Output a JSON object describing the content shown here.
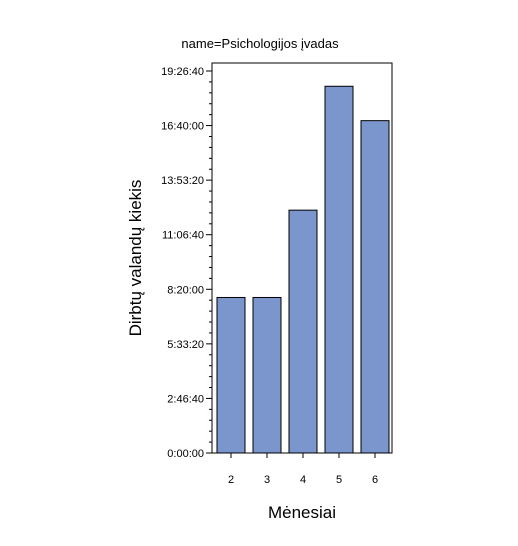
{
  "chart_data": {
    "type": "bar",
    "title": "name=Psichologijos įvadas",
    "xlabel": "Mėnesiai",
    "ylabel": "Dirbtų valandų kiekis",
    "categories": [
      "2",
      "3",
      "4",
      "5",
      "6"
    ],
    "values_seconds": [
      28500,
      28500,
      44500,
      67200,
      60900
    ],
    "values": [
      "7:55:00",
      "7:55:00",
      "12:21:40",
      "18:40:00",
      "16:55:00"
    ],
    "ylim_seconds": [
      0,
      72000
    ],
    "y_ticks": [
      {
        "value": 0,
        "label": "0:00:00"
      },
      {
        "value": 10000,
        "label": "2:46:40"
      },
      {
        "value": 20000,
        "label": "5:33:20"
      },
      {
        "value": 30000,
        "label": "8:20:00"
      },
      {
        "value": 40000,
        "label": "11:06:40"
      },
      {
        "value": 50000,
        "label": "13:53:20"
      },
      {
        "value": 60000,
        "label": "16:40:00"
      },
      {
        "value": 70000,
        "label": "19:26:40"
      }
    ],
    "bar_color": "#7b96cc",
    "bar_edge_color": "#000000",
    "grid": false,
    "legend": "none"
  }
}
